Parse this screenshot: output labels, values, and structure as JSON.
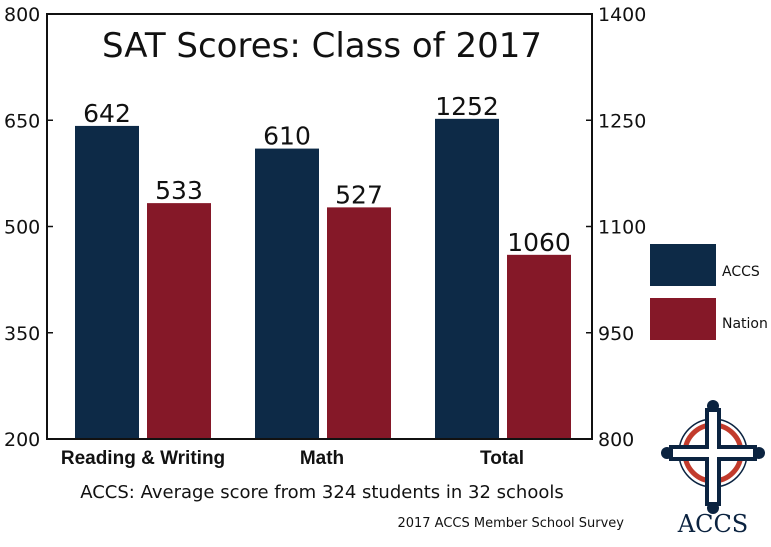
{
  "chart_data": {
    "type": "bar",
    "title": "SAT Scores: Class of 2017",
    "categories": [
      "Reading & Writing",
      "Math",
      "Total"
    ],
    "series": [
      {
        "name": "ACCS",
        "color": "#0d2a47",
        "values": [
          642,
          610,
          1252
        ]
      },
      {
        "name": "Nation",
        "color": "#851828",
        "values": [
          533,
          527,
          1060
        ]
      }
    ],
    "value_labels": [
      [
        "642",
        "610",
        "1252"
      ],
      [
        "533",
        "527",
        "1060"
      ]
    ],
    "y_left": {
      "ticks": [
        "800",
        "650",
        "500",
        "350",
        "200"
      ],
      "ylim": [
        200,
        800
      ]
    },
    "y_right": {
      "ticks": [
        "1400",
        "1250",
        "1100",
        "950",
        "800"
      ],
      "ylim": [
        800,
        1400
      ],
      "applies_to": "Total"
    },
    "legend_position": "right",
    "grid": false
  },
  "footnote": "ACCS: Average score from 324 students in 32 schools",
  "source": "2017 ACCS Member School Survey",
  "logo": {
    "text": "ACCS",
    "icon": "celtic-cross-icon"
  }
}
